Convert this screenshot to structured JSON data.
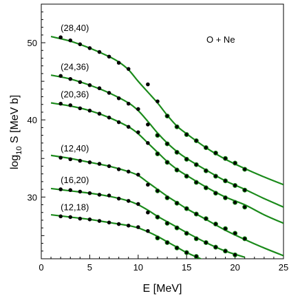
{
  "chart_data": {
    "type": "scatter",
    "annotation": "O + Ne",
    "xlabel": "E [MeV]",
    "ylabel_base": "log",
    "ylabel_sub": "10",
    "ylabel_rest": " S [MeV b]",
    "xlim": [
      0,
      25
    ],
    "ylim": [
      22,
      55
    ],
    "x_ticks": [
      0,
      5,
      10,
      15,
      20,
      25
    ],
    "y_ticks": [
      30,
      40,
      50
    ],
    "grid": false,
    "colors": {
      "fit_line": "#1a8a1a",
      "points": "#000000"
    },
    "series": [
      {
        "name": "(28,40)",
        "points": [
          [
            2,
            50.7
          ],
          [
            3,
            50.3
          ],
          [
            4,
            49.8
          ],
          [
            5,
            49.3
          ],
          [
            6,
            48.8
          ],
          [
            7,
            48.2
          ],
          [
            8,
            47.4
          ],
          [
            9,
            46.6
          ],
          [
            11,
            44.6
          ],
          [
            12,
            42.4
          ]
        ],
        "fit": [
          [
            1,
            50.8
          ],
          [
            3,
            50.2
          ],
          [
            5,
            49.3
          ],
          [
            7,
            48.2
          ],
          [
            8,
            47.5
          ],
          [
            9,
            46.5
          ],
          [
            10,
            45.0
          ],
          [
            11,
            43.6
          ],
          [
            12,
            42.2
          ],
          [
            13,
            40.6
          ],
          [
            14,
            39.2
          ],
          [
            15,
            38.2
          ],
          [
            17,
            36.4
          ],
          [
            19,
            34.9
          ],
          [
            21,
            33.7
          ],
          [
            23,
            32.6
          ],
          [
            25,
            31.6
          ]
        ],
        "tail_points": [
          [
            13,
            40.5
          ],
          [
            14,
            39.1
          ],
          [
            15,
            38.1
          ],
          [
            16,
            37.3
          ],
          [
            17,
            36.4
          ],
          [
            18,
            35.7
          ],
          [
            19,
            35.0
          ],
          [
            20,
            34.4
          ],
          [
            21,
            33.6
          ]
        ]
      },
      {
        "name": "(24,36)",
        "points": [
          [
            2,
            45.7
          ],
          [
            3,
            45.3
          ],
          [
            4,
            44.9
          ],
          [
            5,
            44.5
          ],
          [
            6,
            44.1
          ],
          [
            7,
            43.5
          ],
          [
            8,
            42.8
          ],
          [
            9,
            42.1
          ],
          [
            10,
            41.4
          ],
          [
            11,
            39.4
          ]
        ],
        "fit": [
          [
            1,
            45.8
          ],
          [
            3,
            45.3
          ],
          [
            5,
            44.5
          ],
          [
            7,
            43.5
          ],
          [
            9,
            42.2
          ],
          [
            10,
            41.2
          ],
          [
            11,
            39.8
          ],
          [
            12,
            38.3
          ],
          [
            13,
            37.0
          ],
          [
            14,
            35.9
          ],
          [
            15,
            35.0
          ],
          [
            17,
            33.5
          ],
          [
            19,
            32.1
          ],
          [
            21,
            31.0
          ],
          [
            23,
            29.8
          ],
          [
            25,
            28.7
          ]
        ],
        "tail_points": [
          [
            12,
            38.0
          ],
          [
            13,
            36.9
          ],
          [
            14,
            35.8
          ],
          [
            15,
            34.9
          ],
          [
            16,
            34.2
          ],
          [
            17,
            33.4
          ],
          [
            18,
            32.7
          ],
          [
            19,
            32.1
          ],
          [
            20,
            31.5
          ],
          [
            21,
            30.9
          ]
        ]
      },
      {
        "name": "(20,36)",
        "points": [
          [
            2,
            42.1
          ],
          [
            3,
            41.9
          ],
          [
            4,
            41.5
          ],
          [
            5,
            41.2
          ],
          [
            6,
            40.8
          ],
          [
            7,
            40.3
          ],
          [
            8,
            39.7
          ],
          [
            9,
            39.1
          ],
          [
            10,
            38.4
          ],
          [
            11,
            37.0
          ]
        ],
        "fit": [
          [
            1,
            42.2
          ],
          [
            3,
            41.8
          ],
          [
            5,
            41.2
          ],
          [
            7,
            40.3
          ],
          [
            9,
            39.1
          ],
          [
            10,
            38.2
          ],
          [
            11,
            37.0
          ],
          [
            12,
            35.8
          ],
          [
            13,
            34.6
          ],
          [
            14,
            33.6
          ],
          [
            15,
            32.8
          ],
          [
            17,
            31.3
          ],
          [
            19,
            30.0
          ],
          [
            21,
            29.0
          ],
          [
            23,
            27.7
          ],
          [
            25,
            26.6
          ]
        ],
        "tail_points": [
          [
            12,
            35.6
          ],
          [
            13,
            34.5
          ],
          [
            14,
            33.5
          ],
          [
            15,
            32.7
          ],
          [
            16,
            31.9
          ],
          [
            17,
            31.2
          ],
          [
            18,
            30.5
          ],
          [
            19,
            29.9
          ],
          [
            20,
            29.3
          ],
          [
            21,
            28.7
          ]
        ]
      },
      {
        "name": "(12,40)",
        "points": [
          [
            2,
            35.1
          ],
          [
            3,
            34.9
          ],
          [
            4,
            34.7
          ],
          [
            5,
            34.5
          ],
          [
            6,
            34.3
          ],
          [
            7,
            34.0
          ],
          [
            8,
            33.6
          ],
          [
            9,
            33.3
          ],
          [
            10,
            32.9
          ],
          [
            11,
            31.6
          ]
        ],
        "fit": [
          [
            1,
            35.4
          ],
          [
            3,
            35.0
          ],
          [
            5,
            34.5
          ],
          [
            7,
            34.0
          ],
          [
            9,
            33.3
          ],
          [
            10,
            32.8
          ],
          [
            11,
            31.9
          ],
          [
            12,
            31.0
          ],
          [
            13,
            30.1
          ],
          [
            14,
            29.3
          ],
          [
            15,
            28.5
          ],
          [
            17,
            27.1
          ],
          [
            19,
            25.7
          ],
          [
            21,
            24.5
          ],
          [
            23,
            23.4
          ],
          [
            25,
            22.4
          ]
        ],
        "tail_points": [
          [
            12,
            30.8
          ],
          [
            13,
            29.9
          ],
          [
            14,
            29.2
          ],
          [
            15,
            28.5
          ],
          [
            16,
            27.8
          ],
          [
            17,
            27.2
          ],
          [
            18,
            26.5
          ],
          [
            19,
            25.9
          ],
          [
            20,
            25.3
          ],
          [
            21,
            24.6
          ]
        ]
      },
      {
        "name": "(16,20)",
        "points": [
          [
            2,
            31.0
          ],
          [
            3,
            30.9
          ],
          [
            4,
            30.7
          ],
          [
            5,
            30.5
          ],
          [
            6,
            30.3
          ],
          [
            7,
            30.2
          ],
          [
            8,
            29.8
          ],
          [
            9,
            29.5
          ],
          [
            10,
            29.1
          ],
          [
            11,
            28.0
          ]
        ],
        "fit": [
          [
            1,
            31.1
          ],
          [
            3,
            30.8
          ],
          [
            5,
            30.5
          ],
          [
            7,
            30.1
          ],
          [
            9,
            29.5
          ],
          [
            10,
            29.0
          ],
          [
            11,
            28.3
          ],
          [
            12,
            27.5
          ],
          [
            13,
            26.8
          ],
          [
            14,
            26.1
          ],
          [
            15,
            25.4
          ],
          [
            17,
            24.1
          ],
          [
            19,
            23.0
          ],
          [
            21,
            22.2
          ]
        ],
        "tail_points": [
          [
            12,
            27.4
          ],
          [
            13,
            26.6
          ],
          [
            14,
            26.0
          ],
          [
            15,
            25.3
          ],
          [
            16,
            24.6
          ],
          [
            17,
            24.1
          ],
          [
            18,
            23.5
          ],
          [
            19,
            23.0
          ],
          [
            20,
            22.5
          ]
        ]
      },
      {
        "name": "(12,18)",
        "points": [
          [
            2,
            27.5
          ],
          [
            3,
            27.4
          ],
          [
            4,
            27.2
          ],
          [
            5,
            27.1
          ],
          [
            6,
            26.9
          ],
          [
            7,
            26.7
          ],
          [
            8,
            26.5
          ],
          [
            9,
            26.3
          ],
          [
            10,
            26.1
          ],
          [
            11,
            25.6
          ]
        ],
        "fit": [
          [
            1,
            27.7
          ],
          [
            3,
            27.4
          ],
          [
            5,
            27.1
          ],
          [
            7,
            26.7
          ],
          [
            9,
            26.3
          ],
          [
            10,
            26.0
          ],
          [
            11,
            25.5
          ],
          [
            12,
            24.9
          ],
          [
            13,
            24.2
          ],
          [
            14,
            23.5
          ],
          [
            15,
            22.8
          ],
          [
            17,
            21.7
          ]
        ],
        "tail_points": [
          [
            12,
            24.7
          ],
          [
            13,
            24.1
          ],
          [
            14,
            23.4
          ],
          [
            15,
            22.8
          ],
          [
            16,
            22.3
          ]
        ]
      }
    ],
    "label_anchor": [
      {
        "x": 2.0,
        "y": 51.5
      },
      {
        "x": 2.0,
        "y": 46.5
      },
      {
        "x": 2.0,
        "y": 42.9
      },
      {
        "x": 2.0,
        "y": 35.9
      },
      {
        "x": 2.0,
        "y": 31.8
      },
      {
        "x": 2.0,
        "y": 28.3
      }
    ]
  }
}
